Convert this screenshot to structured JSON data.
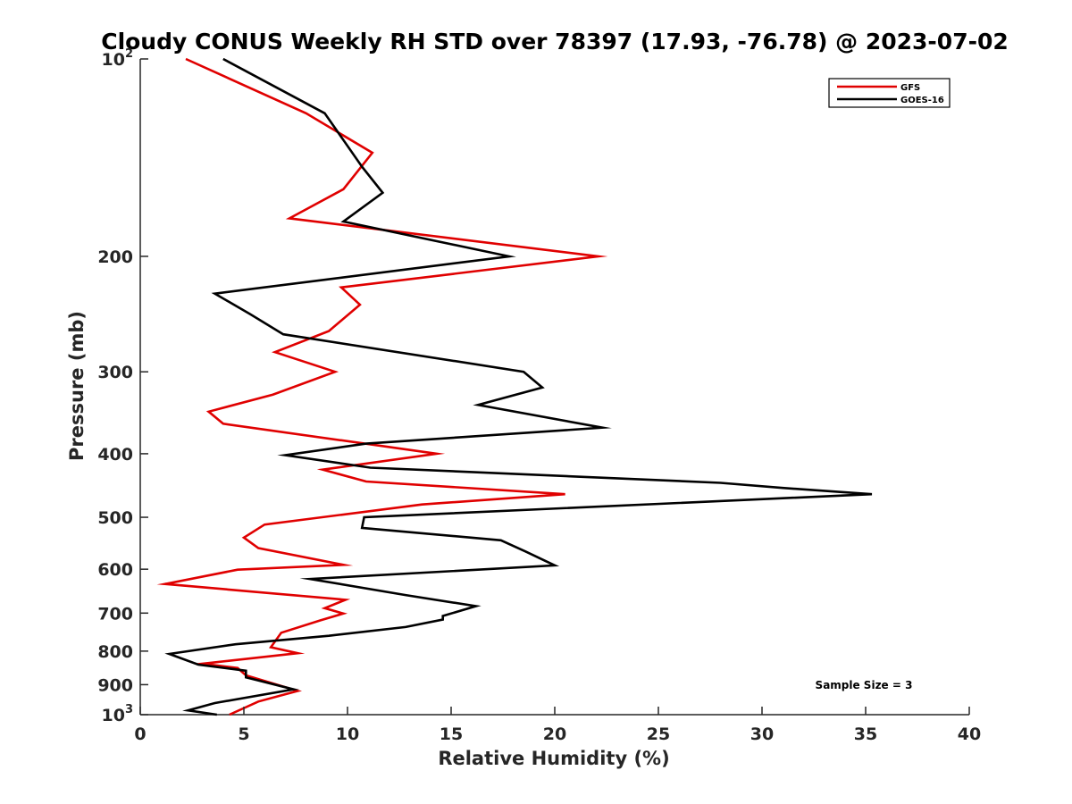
{
  "chart_data": {
    "type": "line",
    "title": "Cloudy CONUS Weekly RH STD over 78397 (17.93, -76.78) @ 2023-07-02",
    "xlabel": "Relative Humidity (%)",
    "ylabel": "Pressure (mb)",
    "xlim": [
      0,
      40
    ],
    "ylim": [
      100,
      1000
    ],
    "y_scale": "log",
    "y_reversed": true,
    "x_ticks": [
      {
        "value": 0,
        "label": "0"
      },
      {
        "value": 5,
        "label": "5"
      },
      {
        "value": 10,
        "label": "10"
      },
      {
        "value": 15,
        "label": "15"
      },
      {
        "value": 20,
        "label": "20"
      },
      {
        "value": 25,
        "label": "25"
      },
      {
        "value": 30,
        "label": "30"
      },
      {
        "value": 35,
        "label": "35"
      },
      {
        "value": 40,
        "label": "40"
      }
    ],
    "y_ticks": [
      {
        "value": 100,
        "label": "10",
        "sup": "2"
      },
      {
        "value": 200,
        "label": "200",
        "sup": ""
      },
      {
        "value": 300,
        "label": "300",
        "sup": ""
      },
      {
        "value": 400,
        "label": "400",
        "sup": ""
      },
      {
        "value": 500,
        "label": "500",
        "sup": ""
      },
      {
        "value": 600,
        "label": "600",
        "sup": ""
      },
      {
        "value": 700,
        "label": "700",
        "sup": ""
      },
      {
        "value": 800,
        "label": "800",
        "sup": ""
      },
      {
        "value": 900,
        "label": "900",
        "sup": ""
      },
      {
        "value": 1000,
        "label": "10",
        "sup": "3"
      }
    ],
    "grid": false,
    "legend_position": "top-right",
    "annotation": "Sample Size = 3",
    "series": [
      {
        "name": "GFS",
        "color": "#e00000",
        "points": [
          {
            "x": 2.2,
            "p": 100
          },
          {
            "x": 8.0,
            "p": 121
          },
          {
            "x": 11.2,
            "p": 139
          },
          {
            "x": 9.8,
            "p": 158
          },
          {
            "x": 7.2,
            "p": 175
          },
          {
            "x": 22.1,
            "p": 200
          },
          {
            "x": 9.7,
            "p": 223
          },
          {
            "x": 10.6,
            "p": 237
          },
          {
            "x": 9.1,
            "p": 260
          },
          {
            "x": 6.5,
            "p": 280
          },
          {
            "x": 9.4,
            "p": 300
          },
          {
            "x": 6.4,
            "p": 325
          },
          {
            "x": 3.3,
            "p": 345
          },
          {
            "x": 4.0,
            "p": 360
          },
          {
            "x": 14.3,
            "p": 400
          },
          {
            "x": 8.8,
            "p": 423
          },
          {
            "x": 10.9,
            "p": 441
          },
          {
            "x": 20.5,
            "p": 461
          },
          {
            "x": 13.6,
            "p": 478
          },
          {
            "x": 6.0,
            "p": 513
          },
          {
            "x": 5.0,
            "p": 537
          },
          {
            "x": 5.7,
            "p": 557
          },
          {
            "x": 9.8,
            "p": 591
          },
          {
            "x": 4.7,
            "p": 601
          },
          {
            "x": 1.2,
            "p": 632
          },
          {
            "x": 9.9,
            "p": 668
          },
          {
            "x": 8.9,
            "p": 688
          },
          {
            "x": 9.8,
            "p": 701
          },
          {
            "x": 8.7,
            "p": 718
          },
          {
            "x": 6.8,
            "p": 750
          },
          {
            "x": 6.3,
            "p": 789
          },
          {
            "x": 7.6,
            "p": 806
          },
          {
            "x": 3.0,
            "p": 836
          },
          {
            "x": 4.7,
            "p": 849
          },
          {
            "x": 5.1,
            "p": 871
          },
          {
            "x": 7.6,
            "p": 920
          },
          {
            "x": 5.7,
            "p": 955
          },
          {
            "x": 4.3,
            "p": 1000
          }
        ]
      },
      {
        "name": "GOES-16",
        "color": "#000000",
        "points": [
          {
            "x": 4.0,
            "p": 100
          },
          {
            "x": 8.9,
            "p": 121
          },
          {
            "x": 10.7,
            "p": 146
          },
          {
            "x": 11.7,
            "p": 160
          },
          {
            "x": 9.8,
            "p": 177
          },
          {
            "x": 17.8,
            "p": 200
          },
          {
            "x": 3.6,
            "p": 228
          },
          {
            "x": 5.3,
            "p": 245
          },
          {
            "x": 6.9,
            "p": 263
          },
          {
            "x": 18.5,
            "p": 300
          },
          {
            "x": 19.4,
            "p": 317
          },
          {
            "x": 16.3,
            "p": 337
          },
          {
            "x": 22.3,
            "p": 365
          },
          {
            "x": 10.9,
            "p": 386
          },
          {
            "x": 7.0,
            "p": 402
          },
          {
            "x": 11.1,
            "p": 420
          },
          {
            "x": 28.0,
            "p": 443
          },
          {
            "x": 31.0,
            "p": 451
          },
          {
            "x": 35.3,
            "p": 461
          },
          {
            "x": 10.8,
            "p": 500
          },
          {
            "x": 10.7,
            "p": 519
          },
          {
            "x": 17.4,
            "p": 542
          },
          {
            "x": 18.6,
            "p": 564
          },
          {
            "x": 20.0,
            "p": 592
          },
          {
            "x": 8.2,
            "p": 621
          },
          {
            "x": 12.8,
            "p": 657
          },
          {
            "x": 16.2,
            "p": 683
          },
          {
            "x": 14.6,
            "p": 707
          },
          {
            "x": 14.6,
            "p": 716
          },
          {
            "x": 12.8,
            "p": 735
          },
          {
            "x": 9.1,
            "p": 758
          },
          {
            "x": 4.6,
            "p": 781
          },
          {
            "x": 1.4,
            "p": 808
          },
          {
            "x": 2.8,
            "p": 839
          },
          {
            "x": 5.1,
            "p": 857
          },
          {
            "x": 5.1,
            "p": 877
          },
          {
            "x": 7.4,
            "p": 915
          },
          {
            "x": 3.6,
            "p": 960
          },
          {
            "x": 2.3,
            "p": 985
          },
          {
            "x": 3.7,
            "p": 1000
          }
        ]
      }
    ]
  }
}
